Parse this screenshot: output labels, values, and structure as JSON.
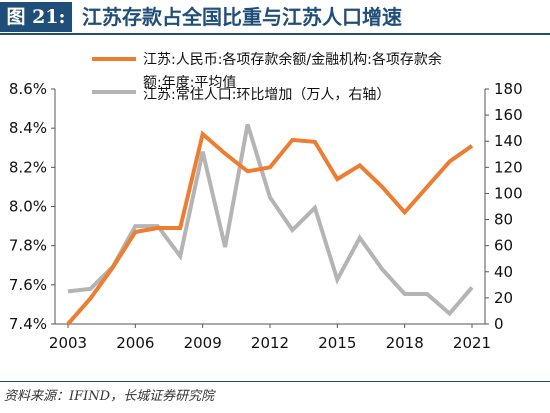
{
  "header": {
    "figure_label": "图 21:",
    "title": "江苏存款占全国比重与江苏人口增速"
  },
  "source": "资料来源：IFIND，长城证券研究院",
  "colors": {
    "series1": "#ed7d31",
    "series2": "#b4b4b4",
    "header_bg": "#1f4e79"
  },
  "chart_data": {
    "type": "line",
    "x": [
      2003,
      2004,
      2005,
      2006,
      2007,
      2008,
      2009,
      2010,
      2011,
      2012,
      2013,
      2014,
      2015,
      2016,
      2017,
      2018,
      2019,
      2020,
      2021
    ],
    "series": [
      {
        "name": "江苏:人民币:各项存款余额/金融机构:各项存款余额:年度:平均值",
        "axis": "left",
        "values": [
          7.4,
          7.53,
          7.69,
          7.87,
          7.89,
          7.89,
          8.37,
          8.27,
          8.18,
          8.2,
          8.34,
          8.33,
          8.14,
          8.21,
          8.1,
          7.97,
          8.1,
          8.23,
          8.31
        ]
      },
      {
        "name": "江苏:常住人口:环比增加（万人，右轴）",
        "axis": "right",
        "values": [
          25,
          27,
          44,
          75,
          75,
          52,
          132,
          59,
          153,
          97,
          72,
          89,
          34,
          66,
          42,
          23,
          23,
          8,
          28
        ]
      }
    ],
    "legend_lines": [
      "江苏:人民币:各项存款余额/金融机构:各项存款余",
      "额:年度:平均值",
      "江苏:常住人口:环比增加（万人，右轴）"
    ],
    "y_left": {
      "range": [
        7.4,
        8.6
      ],
      "ticks": [
        "7.4%",
        "7.6%",
        "7.8%",
        "8.0%",
        "8.2%",
        "8.4%",
        "8.6%"
      ]
    },
    "y_right": {
      "range": [
        0,
        180
      ],
      "ticks": [
        "0",
        "20",
        "40",
        "60",
        "80",
        "100",
        "120",
        "140",
        "160",
        "180"
      ]
    },
    "x_ticks": [
      "2003",
      "2006",
      "2009",
      "2012",
      "2015",
      "2018",
      "2021"
    ],
    "grid": false,
    "legend_placement": "top"
  }
}
